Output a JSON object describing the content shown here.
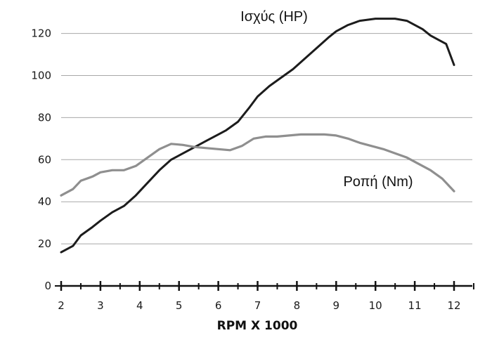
{
  "chart_data": {
    "type": "line",
    "xlabel": "RPM X 1000",
    "ylabel": "",
    "xlim": [
      2,
      12
    ],
    "ylim": [
      0,
      130
    ],
    "xticks": [
      "2",
      "3",
      "4",
      "5",
      "6",
      "7",
      "8",
      "9",
      "10",
      "11",
      "12"
    ],
    "yticks": [
      "0",
      "20",
      "40",
      "60",
      "80",
      "100",
      "120"
    ],
    "grid": "horizontal",
    "series": [
      {
        "name": "Ισχύς (HP)",
        "color": "#1c1c1c",
        "x": [
          2,
          2.3,
          2.5,
          2.8,
          3,
          3.3,
          3.6,
          3.9,
          4.2,
          4.5,
          4.8,
          5.1,
          5.4,
          5.7,
          6,
          6.2,
          6.5,
          6.8,
          7,
          7.3,
          7.6,
          7.9,
          8.2,
          8.5,
          8.8,
          9,
          9.3,
          9.6,
          9.8,
          10,
          10.2,
          10.5,
          10.8,
          11,
          11.2,
          11.4,
          11.6,
          11.8,
          12
        ],
        "values": [
          16,
          19,
          24,
          28,
          31,
          35,
          38,
          43,
          49,
          55,
          60,
          63,
          66,
          69,
          72,
          74,
          78,
          85,
          90,
          95,
          99,
          103,
          108,
          113,
          118,
          121,
          124,
          126,
          126.5,
          127,
          127,
          127,
          126,
          124,
          122,
          119,
          117,
          115,
          105
        ]
      },
      {
        "name": "Ροπή (Nm)",
        "color": "#8f8f8f",
        "x": [
          2,
          2.3,
          2.5,
          2.8,
          3,
          3.3,
          3.6,
          3.9,
          4.2,
          4.5,
          4.8,
          5.1,
          5.4,
          5.7,
          6,
          6.3,
          6.6,
          6.9,
          7.2,
          7.5,
          7.8,
          8.1,
          8.4,
          8.7,
          9,
          9.3,
          9.6,
          9.9,
          10.2,
          10.5,
          10.8,
          11.1,
          11.4,
          11.7,
          12
        ],
        "values": [
          43,
          46,
          50,
          52,
          54,
          55,
          55,
          57,
          61,
          65,
          67.5,
          67,
          66,
          65.5,
          65,
          64.5,
          66.5,
          70,
          71,
          71,
          71.5,
          72,
          72,
          72,
          71.5,
          70,
          68,
          66.5,
          65,
          63,
          61,
          58,
          55,
          51,
          45
        ]
      }
    ]
  }
}
